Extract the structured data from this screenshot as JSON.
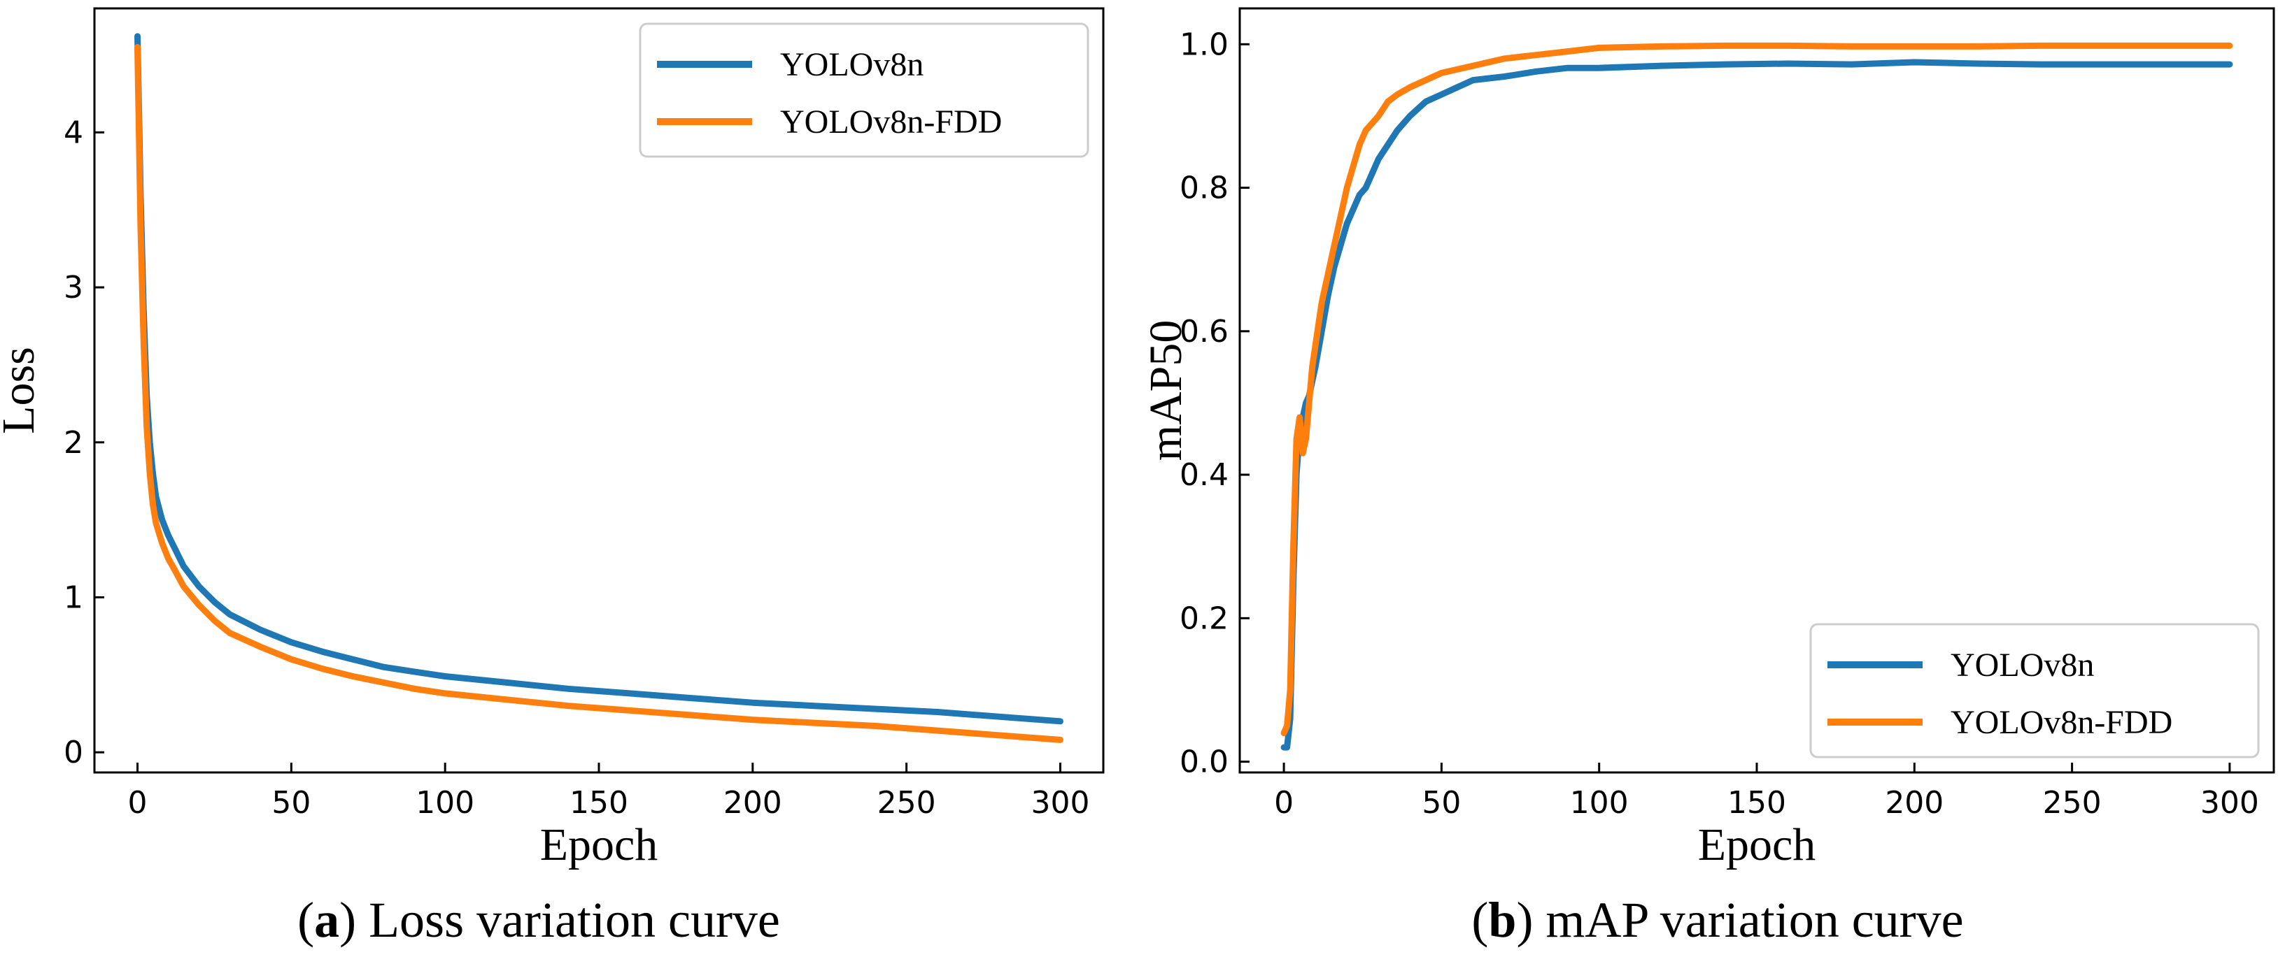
{
  "colors": {
    "series1": "#1f77b4",
    "series2": "#ff7f0e"
  },
  "chart_data": [
    {
      "type": "line",
      "title": "",
      "xlabel": "Epoch",
      "ylabel": "Loss",
      "xlim": [
        -14,
        314
      ],
      "ylim": [
        -0.13,
        4.8
      ],
      "xticks": [
        0,
        50,
        100,
        150,
        200,
        250,
        300
      ],
      "yticks": [
        0,
        1,
        2,
        3,
        4
      ],
      "legend_position": "top-right",
      "caption_letter": "a",
      "caption_text": " Loss variation curve",
      "caption_open": "(",
      "caption_close": ")",
      "series": [
        {
          "name": "YOLOv8n",
          "color": "#1f77b4",
          "x": [
            0,
            1,
            2,
            3,
            4,
            5,
            6,
            8,
            10,
            12,
            15,
            20,
            25,
            30,
            40,
            50,
            60,
            70,
            80,
            90,
            100,
            120,
            140,
            160,
            180,
            200,
            220,
            240,
            260,
            280,
            300
          ],
          "y": [
            4.62,
            3.6,
            2.85,
            2.3,
            2.0,
            1.8,
            1.65,
            1.5,
            1.4,
            1.32,
            1.2,
            1.07,
            0.97,
            0.89,
            0.79,
            0.71,
            0.65,
            0.6,
            0.55,
            0.52,
            0.49,
            0.45,
            0.41,
            0.38,
            0.35,
            0.32,
            0.3,
            0.28,
            0.26,
            0.23,
            0.2
          ]
        },
        {
          "name": "YOLOv8n-FDD",
          "color": "#ff7f0e",
          "x": [
            0,
            1,
            2,
            3,
            4,
            5,
            6,
            8,
            10,
            12,
            15,
            20,
            25,
            30,
            40,
            50,
            60,
            70,
            80,
            90,
            100,
            120,
            140,
            160,
            180,
            200,
            220,
            240,
            260,
            280,
            300
          ],
          "y": [
            4.55,
            3.4,
            2.65,
            2.1,
            1.8,
            1.6,
            1.48,
            1.35,
            1.25,
            1.18,
            1.07,
            0.95,
            0.85,
            0.77,
            0.68,
            0.6,
            0.54,
            0.49,
            0.45,
            0.41,
            0.38,
            0.34,
            0.3,
            0.27,
            0.24,
            0.21,
            0.19,
            0.17,
            0.14,
            0.11,
            0.08
          ]
        }
      ]
    },
    {
      "type": "line",
      "title": "",
      "xlabel": "Epoch",
      "ylabel": "mAP50",
      "xlim": [
        -14,
        314
      ],
      "ylim": [
        -0.015,
        1.05
      ],
      "xticks": [
        0,
        50,
        100,
        150,
        200,
        250,
        300
      ],
      "yticks": [
        0.0,
        0.2,
        0.4,
        0.6,
        0.8,
        1.0
      ],
      "legend_position": "bottom-right",
      "caption_letter": "b",
      "caption_text": " mAP variation curve",
      "caption_open": "(",
      "caption_close": ")",
      "series": [
        {
          "name": "YOLOv8n",
          "color": "#1f77b4",
          "x": [
            0,
            1,
            2,
            3,
            4,
            5,
            6,
            7,
            8,
            9,
            10,
            12,
            14,
            16,
            18,
            20,
            22,
            24,
            26,
            28,
            30,
            33,
            36,
            40,
            45,
            50,
            55,
            60,
            70,
            80,
            90,
            100,
            120,
            140,
            160,
            180,
            200,
            220,
            240,
            260,
            280,
            300
          ],
          "y": [
            0.02,
            0.02,
            0.06,
            0.25,
            0.4,
            0.46,
            0.48,
            0.5,
            0.51,
            0.53,
            0.55,
            0.6,
            0.65,
            0.69,
            0.72,
            0.75,
            0.77,
            0.79,
            0.8,
            0.82,
            0.84,
            0.86,
            0.88,
            0.9,
            0.92,
            0.93,
            0.94,
            0.95,
            0.955,
            0.962,
            0.967,
            0.967,
            0.97,
            0.972,
            0.973,
            0.972,
            0.975,
            0.973,
            0.972,
            0.972,
            0.972,
            0.972
          ]
        },
        {
          "name": "YOLOv8n-FDD",
          "color": "#ff7f0e",
          "x": [
            0,
            1,
            2,
            3,
            4,
            5,
            6,
            7,
            8,
            9,
            10,
            12,
            14,
            16,
            18,
            20,
            22,
            24,
            26,
            28,
            30,
            33,
            36,
            40,
            45,
            50,
            55,
            60,
            70,
            80,
            90,
            100,
            120,
            140,
            160,
            180,
            200,
            220,
            240,
            260,
            280,
            300
          ],
          "y": [
            0.04,
            0.05,
            0.1,
            0.3,
            0.45,
            0.48,
            0.43,
            0.45,
            0.5,
            0.55,
            0.58,
            0.64,
            0.68,
            0.72,
            0.76,
            0.8,
            0.83,
            0.86,
            0.88,
            0.89,
            0.9,
            0.92,
            0.93,
            0.94,
            0.95,
            0.96,
            0.965,
            0.97,
            0.98,
            0.985,
            0.99,
            0.995,
            0.997,
            0.998,
            0.998,
            0.997,
            0.997,
            0.997,
            0.998,
            0.998,
            0.998,
            0.998
          ]
        }
      ]
    }
  ]
}
